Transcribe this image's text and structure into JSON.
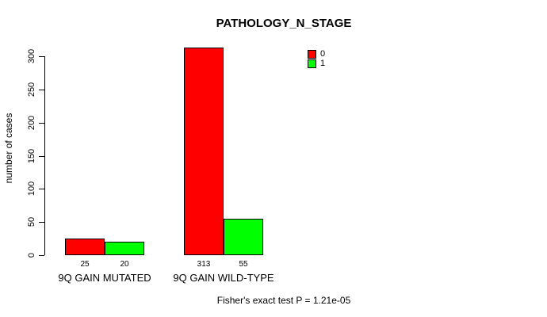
{
  "chart_data": {
    "type": "bar",
    "title": "PATHOLOGY_N_STAGE",
    "ylabel": "number of cases",
    "xlabel": "",
    "categories": [
      "9Q GAIN MUTATED",
      "9Q GAIN WILD-TYPE"
    ],
    "series": [
      {
        "name": "0",
        "color": "#FF0000",
        "values": [
          25,
          313
        ]
      },
      {
        "name": "1",
        "color": "#00FF00",
        "values": [
          20,
          55
        ]
      }
    ],
    "yticks": [
      0,
      50,
      100,
      150,
      200,
      250,
      300
    ],
    "ylim": [
      0,
      300
    ],
    "grid": false,
    "legend_position": "top-right",
    "annotation": "Fisher's exact test P = 1.21e-05"
  },
  "colors": {
    "background": "#FFFFFF",
    "axis": "#000000",
    "text": "#000000"
  }
}
